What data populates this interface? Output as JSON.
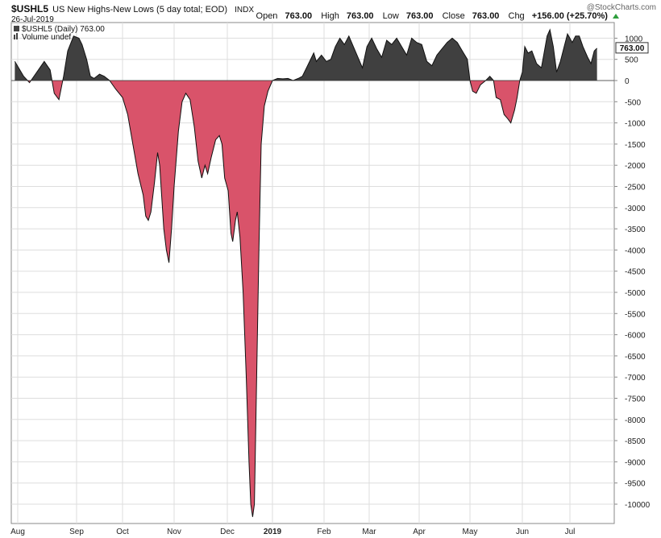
{
  "header": {
    "symbol": "$USHL5",
    "title": "US New Highs-New Lows (5 day total; EOD)",
    "exchange": "INDX",
    "date": "26-Jul-2019",
    "watermark": "@StockCharts.com",
    "open_label": "Open",
    "open": "763.00",
    "high_label": "High",
    "high": "763.00",
    "low_label": "Low",
    "low": "763.00",
    "close_label": "Close",
    "close": "763.00",
    "chg_label": "Chg",
    "chg": "+156.00 (+25.70%)"
  },
  "legend": {
    "series": "$USHL5 (Daily) 763.00",
    "volume": "Volume undef"
  },
  "colors": {
    "positive_fill": "#404040",
    "negative_fill": "#d9536a",
    "grid": "#dddddd",
    "axis": "#888888"
  },
  "chart_data": {
    "type": "area",
    "ylim": [
      -10300,
      1300
    ],
    "yticks": [
      1000,
      500,
      0,
      -500,
      -1000,
      -1500,
      -2000,
      -2500,
      -3000,
      -3500,
      -4000,
      -4500,
      -5000,
      -5500,
      -6000,
      -6500,
      -7000,
      -7500,
      -8000,
      -8500,
      -9000,
      -9500,
      -10000
    ],
    "last_value_label": "763.00",
    "x_labels": [
      {
        "label": "Aug",
        "pos": 0.0
      },
      {
        "label": "Sep",
        "pos": 1.0
      },
      {
        "label": "Oct",
        "pos": 2.0
      },
      {
        "label": "Nov",
        "pos": 3.0
      },
      {
        "label": "Dec",
        "pos": 4.0
      },
      {
        "label": "2019",
        "pos": 5.0,
        "bold": true
      },
      {
        "label": "Feb",
        "pos": 6.0
      },
      {
        "label": "Mar",
        "pos": 7.0
      },
      {
        "label": "Apr",
        "pos": 8.0
      },
      {
        "label": "May",
        "pos": 9.0
      },
      {
        "label": "Jun",
        "pos": 10.0
      },
      {
        "label": "Jul",
        "pos": 11.0
      }
    ],
    "x_unit": "months since Aug 2018 (0 = Aug 1, 2018)",
    "points": [
      [
        -0.05,
        450
      ],
      [
        0.1,
        100
      ],
      [
        0.2,
        -50
      ],
      [
        0.3,
        150
      ],
      [
        0.45,
        450
      ],
      [
        0.55,
        250
      ],
      [
        0.62,
        -300
      ],
      [
        0.7,
        -450
      ],
      [
        0.78,
        100
      ],
      [
        0.85,
        700
      ],
      [
        0.95,
        1050
      ],
      [
        1.05,
        1000
      ],
      [
        1.12,
        850
      ],
      [
        1.22,
        500
      ],
      [
        1.3,
        100
      ],
      [
        1.38,
        50
      ],
      [
        1.5,
        150
      ],
      [
        1.6,
        100
      ],
      [
        1.72,
        0
      ],
      [
        1.85,
        -200
      ],
      [
        2.0,
        -400
      ],
      [
        2.1,
        -800
      ],
      [
        2.2,
        -1500
      ],
      [
        2.3,
        -2200
      ],
      [
        2.4,
        -2700
      ],
      [
        2.45,
        -3200
      ],
      [
        2.5,
        -3300
      ],
      [
        2.55,
        -3100
      ],
      [
        2.62,
        -2400
      ],
      [
        2.68,
        -1700
      ],
      [
        2.72,
        -2000
      ],
      [
        2.8,
        -3500
      ],
      [
        2.85,
        -4000
      ],
      [
        2.9,
        -4300
      ],
      [
        2.95,
        -3500
      ],
      [
        3.0,
        -2500
      ],
      [
        3.08,
        -1200
      ],
      [
        3.15,
        -500
      ],
      [
        3.22,
        -300
      ],
      [
        3.3,
        -450
      ],
      [
        3.38,
        -1100
      ],
      [
        3.45,
        -1900
      ],
      [
        3.52,
        -2300
      ],
      [
        3.58,
        -2000
      ],
      [
        3.63,
        -2200
      ],
      [
        3.7,
        -1800
      ],
      [
        3.78,
        -1400
      ],
      [
        3.85,
        -1300
      ],
      [
        3.9,
        -1500
      ],
      [
        3.95,
        -2300
      ],
      [
        4.02,
        -2600
      ],
      [
        4.08,
        -3600
      ],
      [
        4.12,
        -3800
      ],
      [
        4.18,
        -3300
      ],
      [
        4.22,
        -3100
      ],
      [
        4.28,
        -3700
      ],
      [
        4.35,
        -5000
      ],
      [
        4.42,
        -7000
      ],
      [
        4.48,
        -9000
      ],
      [
        4.52,
        -10000
      ],
      [
        4.56,
        -10300
      ],
      [
        4.6,
        -10000
      ],
      [
        4.65,
        -7000
      ],
      [
        4.7,
        -4000
      ],
      [
        4.75,
        -1500
      ],
      [
        4.82,
        -600
      ],
      [
        4.9,
        -250
      ],
      [
        5.0,
        0
      ],
      [
        5.1,
        50
      ],
      [
        5.2,
        40
      ],
      [
        5.3,
        50
      ],
      [
        5.4,
        0
      ],
      [
        5.5,
        50
      ],
      [
        5.58,
        100
      ],
      [
        5.7,
        400
      ],
      [
        5.8,
        650
      ],
      [
        5.85,
        450
      ],
      [
        5.95,
        600
      ],
      [
        6.05,
        450
      ],
      [
        6.15,
        500
      ],
      [
        6.25,
        800
      ],
      [
        6.35,
        1000
      ],
      [
        6.45,
        850
      ],
      [
        6.55,
        1050
      ],
      [
        6.65,
        800
      ],
      [
        6.75,
        550
      ],
      [
        6.85,
        300
      ],
      [
        6.95,
        800
      ],
      [
        7.05,
        1000
      ],
      [
        7.15,
        750
      ],
      [
        7.25,
        550
      ],
      [
        7.35,
        950
      ],
      [
        7.45,
        850
      ],
      [
        7.55,
        1000
      ],
      [
        7.65,
        800
      ],
      [
        7.75,
        600
      ],
      [
        7.85,
        1000
      ],
      [
        7.95,
        900
      ],
      [
        8.05,
        850
      ],
      [
        8.15,
        450
      ],
      [
        8.25,
        350
      ],
      [
        8.35,
        600
      ],
      [
        8.45,
        750
      ],
      [
        8.55,
        900
      ],
      [
        8.65,
        1000
      ],
      [
        8.75,
        900
      ],
      [
        8.85,
        700
      ],
      [
        8.95,
        500
      ],
      [
        9.0,
        0
      ],
      [
        9.05,
        -250
      ],
      [
        9.12,
        -300
      ],
      [
        9.2,
        -100
      ],
      [
        9.3,
        0
      ],
      [
        9.38,
        100
      ],
      [
        9.45,
        0
      ],
      [
        9.5,
        -400
      ],
      [
        9.58,
        -450
      ],
      [
        9.65,
        -800
      ],
      [
        9.72,
        -900
      ],
      [
        9.78,
        -1000
      ],
      [
        9.85,
        -700
      ],
      [
        9.9,
        -400
      ],
      [
        9.95,
        0
      ],
      [
        10.0,
        200
      ],
      [
        10.05,
        800
      ],
      [
        10.12,
        650
      ],
      [
        10.2,
        700
      ],
      [
        10.3,
        400
      ],
      [
        10.4,
        300
      ],
      [
        10.45,
        600
      ],
      [
        10.52,
        1050
      ],
      [
        10.58,
        1200
      ],
      [
        10.65,
        800
      ],
      [
        10.72,
        200
      ],
      [
        10.8,
        450
      ],
      [
        10.88,
        800
      ],
      [
        10.95,
        1100
      ],
      [
        11.05,
        900
      ],
      [
        11.12,
        1050
      ],
      [
        11.2,
        1050
      ],
      [
        11.28,
        800
      ],
      [
        11.38,
        550
      ],
      [
        11.45,
        400
      ],
      [
        11.52,
        700
      ],
      [
        11.58,
        763
      ]
    ]
  }
}
